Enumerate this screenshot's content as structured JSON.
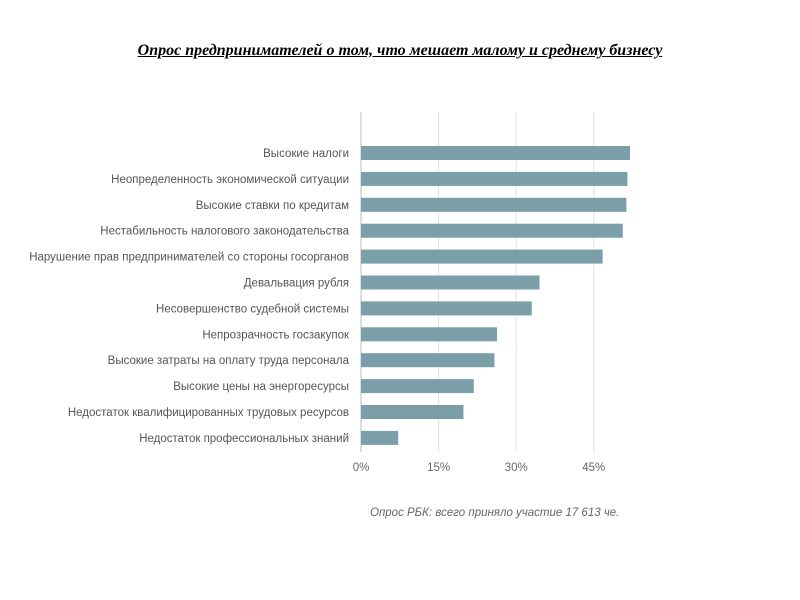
{
  "page": {
    "title": "Опрос предпринимателей о том, что мешает малому и среднему бизнесу"
  },
  "chart_data": {
    "type": "bar",
    "orientation": "horizontal",
    "title": "",
    "xlabel": "",
    "ylabel": "",
    "categories": [
      "Высокие налоги",
      "Неопределенность экономической ситуации",
      "Высокие ставки по кредитам",
      "Нестабильность налогового законодательства",
      "Нарушение прав предпринимателей со стороны госорганов",
      "Девальвация рубля",
      "Несовершенство судебной системы",
      "Непрозрачность госзакупок",
      "Высокие затраты на оплату труда персонала",
      "Высокие цены на энергоресурсы",
      "Недостаток квалифицированных трудовых ресурсов",
      "Недостаток профессиональных знаний"
    ],
    "values": [
      52,
      51.5,
      51.3,
      50.6,
      46.7,
      34.5,
      33,
      26.3,
      25.8,
      21.8,
      19.8,
      7.2
    ],
    "xlim": [
      0,
      52
    ],
    "xticks": [
      0,
      15,
      30,
      45
    ],
    "xtick_labels": [
      "0%",
      "15%",
      "30%",
      "45%"
    ],
    "grid": true,
    "bar_color": "#7a9fa8",
    "note": "Опрос РБК: всего приняло участие 17 613 че."
  }
}
